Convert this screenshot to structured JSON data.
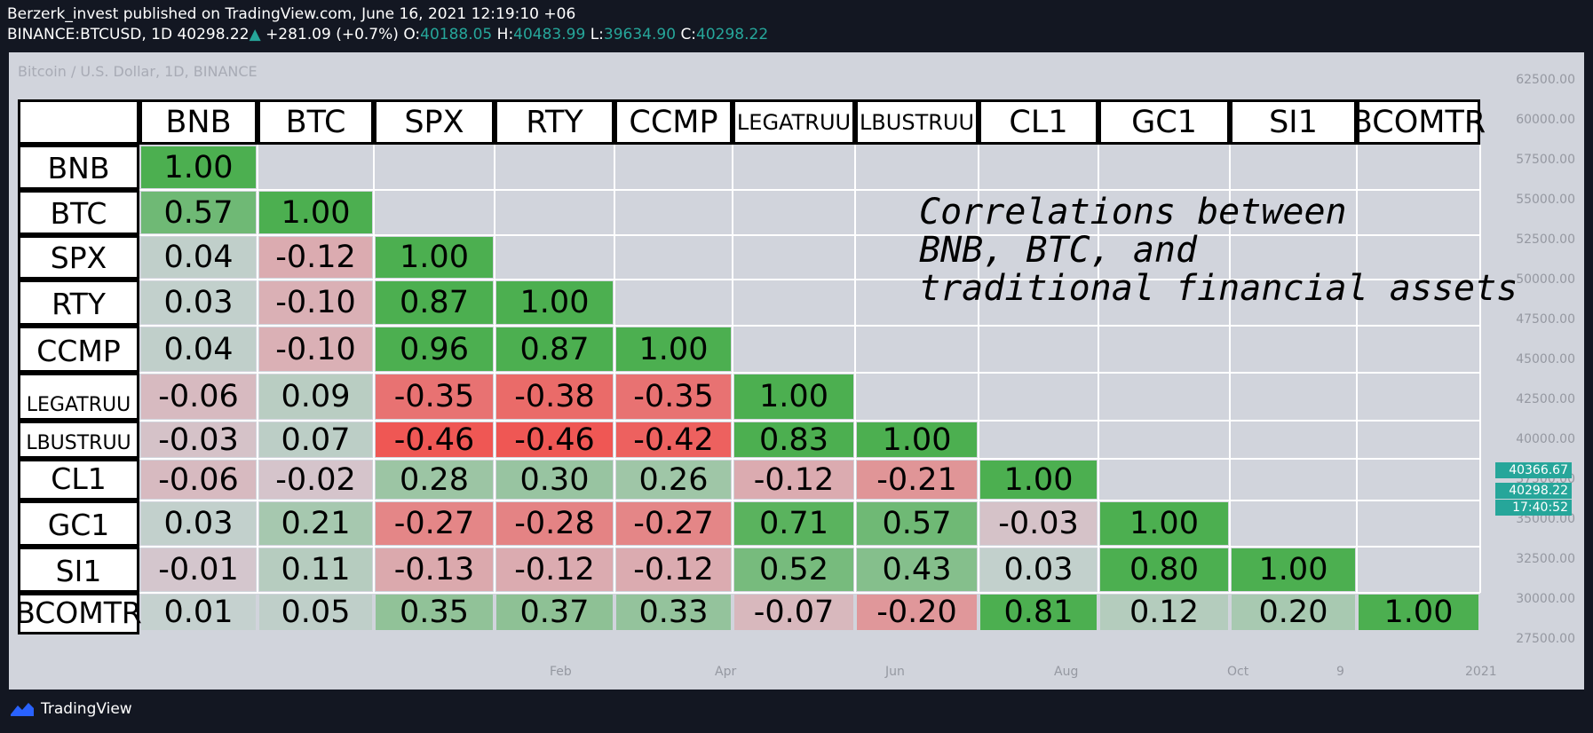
{
  "header": {
    "publisher_line": "Berzerk_invest published on TradingView.com, June 16, 2021 12:19:10 +06",
    "symbol": "BINANCE:BTCUSD, 1D",
    "last_price": "40298.22",
    "change_arrow": "▲",
    "change": "+281.09 (+0.7%)",
    "o_label": "O:",
    "o_value": "40188.05",
    "h_label": "H:",
    "h_value": "40483.99",
    "l_label": "L:",
    "l_value": "39634.90",
    "c_label": "C:",
    "c_value": "40298.22"
  },
  "chart_title": "Bitcoin / U.S. Dollar, 1D, BINANCE",
  "y_axis_ticks": [
    "62500.00",
    "60000.00",
    "57500.00",
    "55000.00",
    "52500.00",
    "50000.00",
    "47500.00",
    "45000.00",
    "42500.00",
    "40000.00",
    "37500.00",
    "35000.00",
    "32500.00",
    "30000.00",
    "27500.00"
  ],
  "price_labels": {
    "high": "40366.67",
    "last": "40298.22",
    "countdown": "17:40:52"
  },
  "x_axis_ticks": [
    "Feb",
    "Apr",
    "Jun",
    "Aug",
    "Oct",
    "9",
    "2021"
  ],
  "annotation": "Correlations between\nBNB, BTC, and\ntraditional financial assets",
  "colors": {
    "positive": "#4caf50",
    "negative": "#f23645",
    "neutral": "#d1d4dc",
    "accent": "#26a69a"
  },
  "matrix": {
    "assets": [
      "BNB",
      "BTC",
      "SPX",
      "RTY",
      "CCMP",
      "LEGATRUU",
      "LBUSTRUU",
      "CL1",
      "GC1",
      "SI1",
      "BCOMTR"
    ],
    "rows": [
      [
        1.0
      ],
      [
        0.57,
        1.0
      ],
      [
        0.04,
        -0.12,
        1.0
      ],
      [
        0.03,
        -0.1,
        0.87,
        1.0
      ],
      [
        0.04,
        -0.1,
        0.96,
        0.87,
        1.0
      ],
      [
        -0.06,
        0.09,
        -0.35,
        -0.38,
        -0.35,
        1.0
      ],
      [
        -0.03,
        0.07,
        -0.46,
        -0.46,
        -0.42,
        0.83,
        1.0
      ],
      [
        -0.06,
        -0.02,
        0.28,
        0.3,
        0.26,
        -0.12,
        -0.21,
        1.0
      ],
      [
        0.03,
        0.21,
        -0.27,
        -0.28,
        -0.27,
        0.71,
        0.57,
        -0.03,
        1.0
      ],
      [
        -0.01,
        0.11,
        -0.13,
        -0.12,
        -0.12,
        0.52,
        0.43,
        0.03,
        0.8,
        1.0
      ],
      [
        0.01,
        0.05,
        0.35,
        0.37,
        0.33,
        -0.07,
        -0.2,
        0.81,
        0.12,
        0.2,
        1.0
      ]
    ]
  },
  "footer": {
    "brand": "TradingView"
  }
}
